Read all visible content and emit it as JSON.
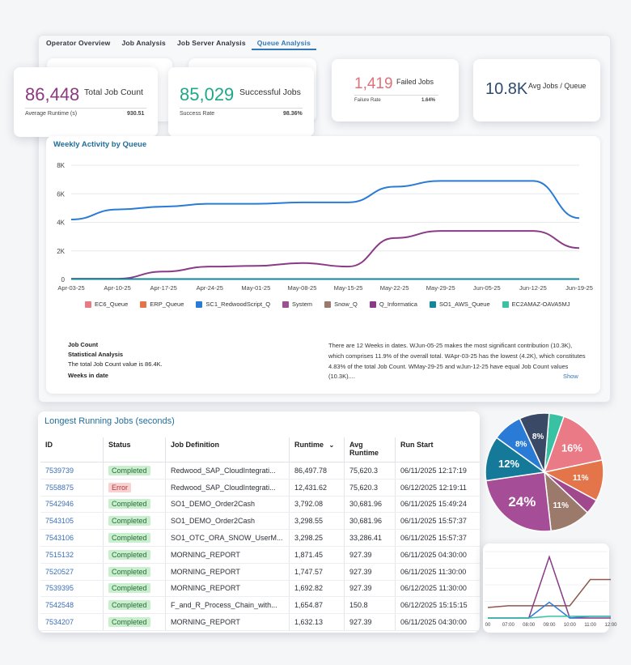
{
  "tabs": [
    "Operator Overview",
    "Job Analysis",
    "Job Server Analysis",
    "Queue Analysis"
  ],
  "active_tab": 3,
  "kpis": {
    "total": {
      "value": "86,448",
      "label": "Total Job Count",
      "sub_label": "Average Runtime (s)",
      "sub_value": "930.51"
    },
    "success": {
      "value": "85,029",
      "label": "Successful Jobs",
      "sub_label": "Success Rate",
      "sub_value": "98.36%"
    },
    "failed": {
      "value": "1,419",
      "label": "Failed Jobs",
      "sub_label": "Failure Rate",
      "sub_value": "1.64%"
    },
    "avg": {
      "value": "10.8K",
      "label": "Avg Jobs / Queue"
    }
  },
  "colors": {
    "purple": "#8b3a7f",
    "teal": "#1ea888",
    "red": "#e0707a",
    "navy": "#2d4a70",
    "accent": "#3477b5"
  },
  "weekly_chart": {
    "title": "Weekly Activity by Queue",
    "legend": [
      {
        "name": "EC6_Queue",
        "color": "#ea7a86"
      },
      {
        "name": "ERP_Queue",
        "color": "#e4754a"
      },
      {
        "name": "SC1_RedwoodScript_Q",
        "color": "#2a7bd6"
      },
      {
        "name": "System",
        "color": "#9d4f94"
      },
      {
        "name": "Snow_Q",
        "color": "#9b7a6c"
      },
      {
        "name": "Q_Informatica",
        "color": "#8a3a86"
      },
      {
        "name": "SO1_AWS_Queue",
        "color": "#13879a"
      },
      {
        "name": "EC2AMAZ-OAVA5MJ",
        "color": "#39c1a4"
      }
    ]
  },
  "stats": {
    "left": [
      "Job Count",
      "Statistical Analysis",
      "The total Job Count value is 86.4K.",
      "Weeks in date"
    ],
    "right": "There are 12 Weeks in dates. WJun-05-25 makes the most significant contribution (10.3K), which comprises 11.9% of the overall total. WApr-03-25 has the lowest (4.2K), which constitutes 4.83% of the total Job Count. WMay-29-25 and wJun-12-25 have equal Job Count values (10.3K)....",
    "show": "Show"
  },
  "jobs_table": {
    "title": "Longest Running Jobs (seconds)",
    "headers": [
      "ID",
      "Status",
      "Job Definition",
      "Runtime",
      "Avg Runtime",
      "Run Start"
    ],
    "rows": [
      {
        "id": "7539739",
        "status": "Completed",
        "def": "Redwood_SAP_CloudIntegrati...",
        "runtime": "86,497.78",
        "avg": "75,620.3",
        "start": "06/11/2025 12:17:19"
      },
      {
        "id": "7558875",
        "status": "Error",
        "def": "Redwood_SAP_CloudIntegrati...",
        "runtime": "12,431.62",
        "avg": "75,620.3",
        "start": "06/12/2025 12:19:11"
      },
      {
        "id": "7542946",
        "status": "Completed",
        "def": "SO1_DEMO_Order2Cash",
        "runtime": "3,792.08",
        "avg": "30,681.96",
        "start": "06/11/2025 15:49:24"
      },
      {
        "id": "7543105",
        "status": "Completed",
        "def": "SO1_DEMO_Order2Cash",
        "runtime": "3,298.55",
        "avg": "30,681.96",
        "start": "06/11/2025 15:57:37"
      },
      {
        "id": "7543106",
        "status": "Completed",
        "def": "SO1_OTC_ORA_SNOW_UserM...",
        "runtime": "3,298.25",
        "avg": "33,286.41",
        "start": "06/11/2025 15:57:37"
      },
      {
        "id": "7515132",
        "status": "Completed",
        "def": "MORNING_REPORT",
        "runtime": "1,871.45",
        "avg": "927.39",
        "start": "06/11/2025 04:30:00"
      },
      {
        "id": "7520527",
        "status": "Completed",
        "def": "MORNING_REPORT",
        "runtime": "1,747.57",
        "avg": "927.39",
        "start": "06/11/2025 11:30:00"
      },
      {
        "id": "7539395",
        "status": "Completed",
        "def": "MORNING_REPORT",
        "runtime": "1,692.82",
        "avg": "927.39",
        "start": "06/12/2025 11:30:00"
      },
      {
        "id": "7542548",
        "status": "Completed",
        "def": "F_and_R_Process_Chain_with...",
        "runtime": "1,654.87",
        "avg": "150.8",
        "start": "06/12/2025 15:15:15"
      },
      {
        "id": "7534207",
        "status": "Completed",
        "def": "MORNING_REPORT",
        "runtime": "1,632.13",
        "avg": "927.39",
        "start": "06/11/2025 04:30:00"
      }
    ]
  },
  "chart_data": [
    {
      "type": "line",
      "title": "Weekly Activity by Queue",
      "x": [
        "Apr-03-25",
        "Apr-10-25",
        "Apr-17-25",
        "Apr-24-25",
        "May-01-25",
        "May-08-25",
        "May-15-25",
        "May-22-25",
        "May-29-25",
        "Jun-05-25",
        "Jun-12-25",
        "Jun-19-25"
      ],
      "ylim": [
        0,
        8000
      ],
      "yticks": [
        "0",
        "2K",
        "4K",
        "6K",
        "8K"
      ],
      "grid": true,
      "legend_position": "bottom",
      "series": [
        {
          "name": "SC1_RedwoodScript_Q",
          "color": "#2a7bd6",
          "values": [
            4200,
            4900,
            5100,
            5300,
            5300,
            5400,
            5400,
            6500,
            6900,
            6900,
            6900,
            4300
          ]
        },
        {
          "name": "Q_Informatica",
          "color": "#8a3a86",
          "values": [
            50,
            50,
            550,
            900,
            950,
            1150,
            900,
            2900,
            3400,
            3400,
            3400,
            2200
          ]
        },
        {
          "name": "SO1_AWS_Queue",
          "color": "#13879a",
          "values": [
            30,
            30,
            30,
            30,
            30,
            30,
            30,
            30,
            30,
            30,
            30,
            30
          ]
        }
      ]
    },
    {
      "type": "pie",
      "slices": [
        {
          "label": "",
          "value": 4,
          "color": "#39c1a4"
        },
        {
          "label": "16%",
          "value": 16,
          "color": "#ea7a86"
        },
        {
          "label": "11%",
          "value": 11,
          "color": "#e4754a"
        },
        {
          "label": "",
          "value": 4,
          "color": "#a04a8d"
        },
        {
          "label": "11%",
          "value": 11,
          "color": "#9b7a6c"
        },
        {
          "label": "24%",
          "value": 24,
          "color": "#a64d97"
        },
        {
          "label": "12%",
          "value": 12,
          "color": "#157a9a"
        },
        {
          "label": "8%",
          "value": 8,
          "color": "#2a7bd6"
        },
        {
          "label": "8%",
          "value": 8,
          "color": "#3a4a66"
        }
      ]
    },
    {
      "type": "line",
      "x": [
        "00",
        "07:00",
        "08:00",
        "09:00",
        "10:00",
        "11:00",
        "12:00"
      ],
      "series": [
        {
          "name": "",
          "color": "#8b5a4a",
          "values": [
            6,
            7,
            7,
            7,
            7,
            22,
            22
          ]
        },
        {
          "name": "",
          "color": "#8a3a86",
          "values": [
            0,
            0,
            0,
            35,
            0,
            0,
            0
          ]
        },
        {
          "name": "",
          "color": "#2a7bd6",
          "values": [
            0,
            0,
            0,
            9,
            0,
            1,
            1
          ]
        },
        {
          "name": "",
          "color": "#39c1a4",
          "values": [
            0,
            0,
            0,
            1,
            1,
            1,
            1
          ]
        }
      ]
    }
  ]
}
